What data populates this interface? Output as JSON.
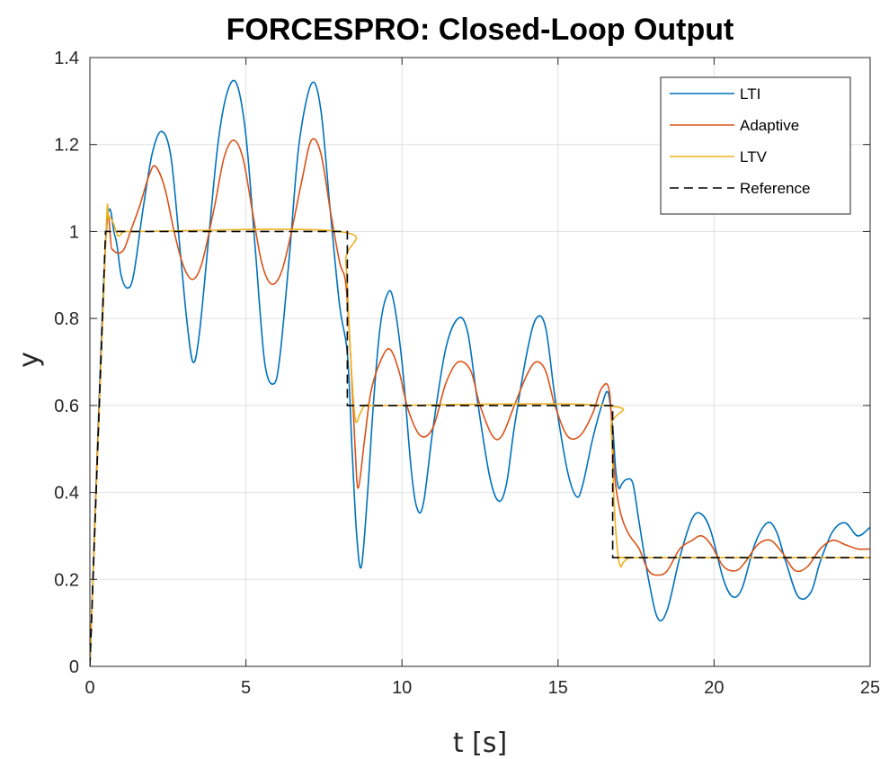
{
  "chart_data": {
    "type": "line",
    "title": "FORCESPRO: Closed-Loop Output",
    "xlabel": "t [s]",
    "ylabel": "y",
    "xlim": [
      0,
      25
    ],
    "ylim": [
      0,
      1.4
    ],
    "xticks": [
      0,
      5,
      10,
      15,
      20,
      25
    ],
    "xtick_labels": [
      "0",
      "5",
      "10",
      "15",
      "20",
      "25"
    ],
    "yticks": [
      0,
      0.2,
      0.4,
      0.6,
      0.8,
      1,
      1.2,
      1.4
    ],
    "ytick_labels": [
      "0",
      "0.2",
      "0.4",
      "0.6",
      "0.8",
      "1",
      "1.2",
      "1.4"
    ],
    "grid": true,
    "legend_position": "top-right",
    "series": [
      {
        "name": "LTI",
        "color": "#0072BD",
        "style": "solid",
        "x": [
          0,
          0.5,
          0.8,
          1.0,
          1.2,
          1.4,
          1.7,
          2.0,
          2.3,
          2.6,
          2.9,
          3.1,
          3.3,
          3.5,
          3.8,
          4.1,
          4.4,
          4.7,
          5.0,
          5.3,
          5.6,
          5.9,
          6.1,
          6.4,
          6.7,
          7.1,
          7.4,
          7.7,
          8.0,
          8.25,
          8.4,
          8.55,
          8.7,
          8.9,
          9.1,
          9.3,
          9.5,
          9.7,
          10.0,
          10.3,
          10.5,
          10.7,
          11.0,
          11.4,
          11.8,
          12.1,
          12.4,
          12.8,
          13.1,
          13.35,
          13.6,
          14.0,
          14.3,
          14.6,
          14.9,
          15.3,
          15.6,
          15.8,
          16.1,
          16.4,
          16.6,
          16.75,
          16.85,
          16.95,
          17.05,
          17.2,
          17.4,
          17.6,
          17.9,
          18.2,
          18.5,
          18.9,
          19.3,
          19.6,
          19.9,
          20.3,
          20.6,
          20.9,
          21.3,
          21.7,
          22.0,
          22.3,
          22.7,
          23.1,
          23.4,
          23.8,
          24.2,
          24.6,
          25.0
        ],
        "y": [
          0,
          0.97,
          0.99,
          0.9,
          0.87,
          0.9,
          1.05,
          1.18,
          1.23,
          1.17,
          0.95,
          0.8,
          0.7,
          0.76,
          0.98,
          1.2,
          1.32,
          1.34,
          1.22,
          0.96,
          0.7,
          0.65,
          0.72,
          0.95,
          1.2,
          1.34,
          1.28,
          1.05,
          0.83,
          0.72,
          0.5,
          0.3,
          0.23,
          0.4,
          0.62,
          0.78,
          0.85,
          0.85,
          0.7,
          0.45,
          0.36,
          0.38,
          0.55,
          0.73,
          0.8,
          0.77,
          0.62,
          0.44,
          0.38,
          0.42,
          0.55,
          0.72,
          0.8,
          0.78,
          0.62,
          0.45,
          0.39,
          0.42,
          0.52,
          0.6,
          0.63,
          0.55,
          0.45,
          0.41,
          0.42,
          0.43,
          0.42,
          0.33,
          0.2,
          0.11,
          0.13,
          0.25,
          0.34,
          0.35,
          0.31,
          0.2,
          0.16,
          0.18,
          0.28,
          0.33,
          0.31,
          0.24,
          0.16,
          0.17,
          0.24,
          0.31,
          0.33,
          0.3,
          0.32
        ]
      },
      {
        "name": "Adaptive",
        "color": "#D95319",
        "style": "solid",
        "x": [
          0,
          0.5,
          0.7,
          0.9,
          1.1,
          1.3,
          1.6,
          1.9,
          2.1,
          2.4,
          2.7,
          3.0,
          3.3,
          3.6,
          4.0,
          4.3,
          4.6,
          4.9,
          5.2,
          5.5,
          5.8,
          6.1,
          6.4,
          6.8,
          7.1,
          7.4,
          7.7,
          8.0,
          8.2,
          8.35,
          8.5,
          8.6,
          8.8,
          9.0,
          9.3,
          9.6,
          9.9,
          10.2,
          10.6,
          11.0,
          11.4,
          11.8,
          12.2,
          12.5,
          12.9,
          13.2,
          13.6,
          14.0,
          14.3,
          14.6,
          14.9,
          15.3,
          15.7,
          16.1,
          16.4,
          16.65,
          16.8,
          16.95,
          17.1,
          17.3,
          17.6,
          17.9,
          18.2,
          18.5,
          18.9,
          19.3,
          19.6,
          19.9,
          20.3,
          20.7,
          21.0,
          21.4,
          21.8,
          22.2,
          22.6,
          23.0,
          23.4,
          23.8,
          24.2,
          24.6,
          25.0
        ],
        "y": [
          0,
          0.97,
          0.96,
          0.95,
          0.96,
          1.0,
          1.06,
          1.13,
          1.15,
          1.1,
          1.0,
          0.92,
          0.89,
          0.93,
          1.06,
          1.17,
          1.21,
          1.17,
          1.05,
          0.93,
          0.88,
          0.9,
          0.98,
          1.12,
          1.21,
          1.18,
          1.05,
          0.93,
          0.88,
          0.72,
          0.5,
          0.41,
          0.52,
          0.63,
          0.7,
          0.73,
          0.68,
          0.59,
          0.53,
          0.55,
          0.65,
          0.7,
          0.68,
          0.6,
          0.53,
          0.53,
          0.6,
          0.67,
          0.7,
          0.68,
          0.6,
          0.53,
          0.53,
          0.58,
          0.64,
          0.63,
          0.45,
          0.37,
          0.33,
          0.3,
          0.27,
          0.22,
          0.21,
          0.22,
          0.27,
          0.29,
          0.3,
          0.28,
          0.23,
          0.22,
          0.24,
          0.28,
          0.29,
          0.26,
          0.22,
          0.23,
          0.27,
          0.29,
          0.28,
          0.27,
          0.27
        ]
      },
      {
        "name": "LTV",
        "color": "#EDB120",
        "style": "solid",
        "x": [
          0,
          0.5,
          0.6,
          0.75,
          0.9,
          1.1,
          1.5,
          8.0,
          8.2,
          8.35,
          8.5,
          8.65,
          8.8,
          9.0,
          9.3,
          16.5,
          16.7,
          16.8,
          16.9,
          17.0,
          17.1,
          17.3,
          17.5,
          25.0
        ],
        "y": [
          0,
          0.97,
          1.03,
          1.02,
          0.99,
          1.0,
          1.0,
          1.0,
          0.93,
          0.72,
          0.57,
          0.58,
          0.6,
          0.6,
          0.6,
          0.6,
          0.55,
          0.37,
          0.27,
          0.23,
          0.24,
          0.25,
          0.25,
          0.25
        ]
      },
      {
        "name": "Reference",
        "color": "#000000",
        "style": "dashed",
        "x": [
          0,
          0.5,
          8.25,
          8.25,
          16.75,
          16.75,
          25.0
        ],
        "y": [
          0,
          1.0,
          1.0,
          0.6,
          0.6,
          0.25,
          0.25
        ]
      }
    ]
  }
}
